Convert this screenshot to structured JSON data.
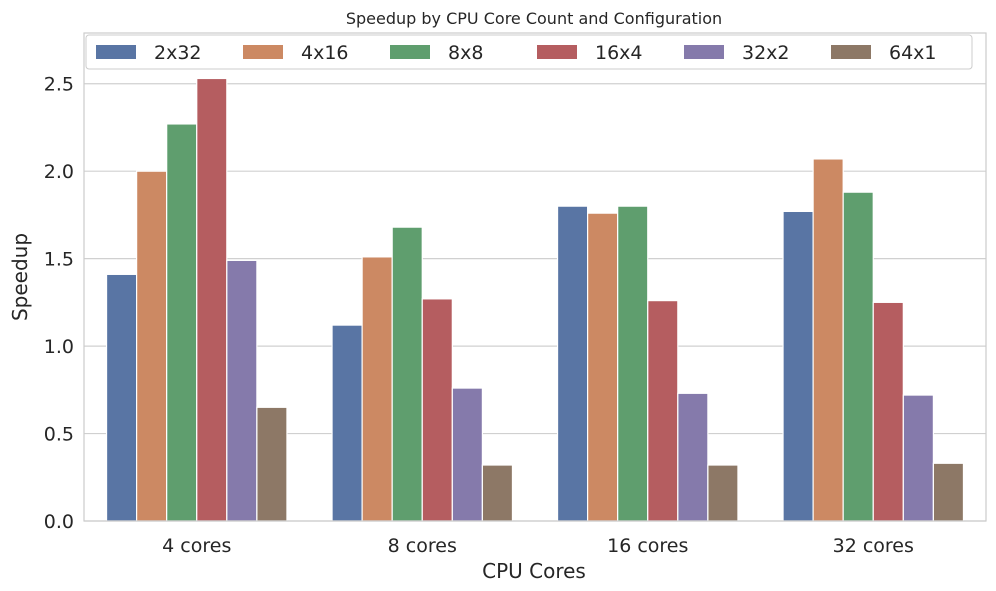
{
  "chart_data": {
    "type": "bar",
    "title": "Speedup by CPU Core Count and Configuration",
    "xlabel": "CPU Cores",
    "ylabel": "Speedup",
    "categories": [
      "4 cores",
      "8 cores",
      "16 cores",
      "32 cores"
    ],
    "ylim": [
      0,
      2.79
    ],
    "yticks": [
      0.0,
      0.5,
      1.0,
      1.5,
      2.0,
      2.5
    ],
    "ytick_labels": [
      "0.0",
      "0.5",
      "1.0",
      "1.5",
      "2.0",
      "2.5"
    ],
    "grid": "horizontal",
    "legend_position": "top",
    "series": [
      {
        "name": "2x32",
        "color": "#5975a4",
        "values": [
          1.41,
          1.12,
          1.8,
          1.77
        ]
      },
      {
        "name": "4x16",
        "color": "#cc8963",
        "values": [
          2.0,
          1.51,
          1.76,
          2.07
        ]
      },
      {
        "name": "8x8",
        "color": "#5f9e6e",
        "values": [
          2.27,
          1.68,
          1.8,
          1.88
        ]
      },
      {
        "name": "16x4",
        "color": "#b55d60",
        "values": [
          2.53,
          1.27,
          1.26,
          1.25
        ]
      },
      {
        "name": "32x2",
        "color": "#857aab",
        "values": [
          1.49,
          0.76,
          0.73,
          0.72
        ]
      },
      {
        "name": "64x1",
        "color": "#8d7866",
        "values": [
          0.65,
          0.32,
          0.32,
          0.33
        ]
      }
    ]
  }
}
